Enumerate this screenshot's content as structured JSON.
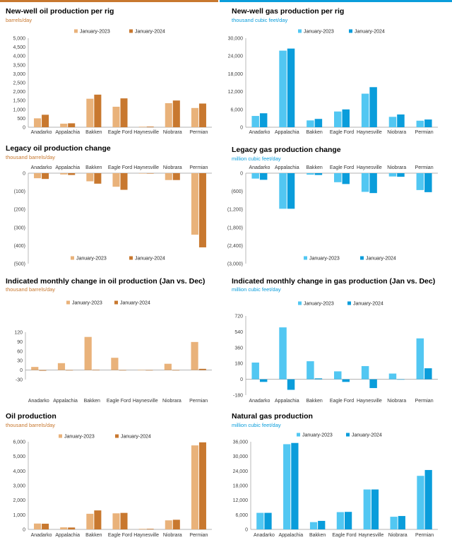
{
  "colors": {
    "oil_2023": "#E9B27A",
    "oil_2024": "#C8782F",
    "gas_2023": "#52C7F2",
    "gas_2024": "#0A9DDB",
    "oil_accent": "#C8782F",
    "gas_accent": "#0A9DDB",
    "axis": "#9a9a9a",
    "grid": "#e6e6e6"
  },
  "chart_data": [
    {
      "id": "oil-newwell",
      "type": "bar",
      "title": "New-well oil production per rig",
      "subtitle": "barrels/day",
      "categories": [
        "Anadarko",
        "Appalachia",
        "Bakken",
        "Eagle Ford",
        "Haynesville",
        "Niobrara",
        "Permian"
      ],
      "series": [
        {
          "name": "January-2023",
          "values": [
            500,
            200,
            1600,
            1150,
            30,
            1350,
            1080
          ]
        },
        {
          "name": "January-2024",
          "values": [
            700,
            220,
            1830,
            1620,
            35,
            1500,
            1330
          ]
        }
      ],
      "yticks": [
        "0",
        "500",
        "1,000",
        "1,500",
        "2,000",
        "2,500",
        "3,000",
        "3,500",
        "4,000",
        "4,500",
        "5,000"
      ],
      "ylim": [
        0,
        5000
      ],
      "legend": "top",
      "category_axis": "bottom"
    },
    {
      "id": "gas-newwell",
      "type": "bar",
      "title": "New-well gas production per rig",
      "subtitle": "thousand cubic feet/day",
      "categories": [
        "Anadarko",
        "Appalachia",
        "Bakken",
        "Eagle Ford",
        "Haynesville",
        "Niobrara",
        "Permian"
      ],
      "series": [
        {
          "name": "January-2023",
          "values": [
            3800,
            25800,
            2300,
            5300,
            11300,
            3500,
            2200
          ]
        },
        {
          "name": "January-2024",
          "values": [
            4700,
            26500,
            2800,
            6000,
            13500,
            4300,
            2600
          ]
        }
      ],
      "yticks": [
        "0",
        "6,000",
        "12,000",
        "18,000",
        "24,000",
        "30,000"
      ],
      "ylim": [
        0,
        30000
      ],
      "legend": "top",
      "category_axis": "bottom"
    },
    {
      "id": "oil-legacy",
      "type": "bar",
      "title": "Legacy oil production change",
      "subtitle": "thousand barrels/day",
      "categories": [
        "Anadarko",
        "Appalachia",
        "Bakken",
        "Eagle Ford",
        "Haynesville",
        "Niobrara",
        "Permian"
      ],
      "series": [
        {
          "name": "January-2023",
          "values": [
            -28,
            -7,
            -45,
            -75,
            -2,
            -38,
            -340
          ]
        },
        {
          "name": "January-2024",
          "values": [
            -32,
            -10,
            -58,
            -92,
            -2,
            -38,
            -410
          ]
        }
      ],
      "yticks": [
        "(500)",
        "(400)",
        "(300)",
        "(200)",
        "(100)",
        "0"
      ],
      "ylim": [
        -500,
        0
      ],
      "legend": "bottom",
      "category_axis": "top"
    },
    {
      "id": "gas-legacy",
      "type": "bar",
      "title": "Legacy gas production change",
      "subtitle": "million cubic feet/day",
      "categories": [
        "Anadarko",
        "Appalachia",
        "Bakken",
        "Eagle Ford",
        "Haynesville",
        "Niobrara",
        "Permian"
      ],
      "series": [
        {
          "name": "January-2023",
          "values": [
            -180,
            -1180,
            -50,
            -300,
            -620,
            -110,
            -560
          ]
        },
        {
          "name": "January-2024",
          "values": [
            -220,
            -1180,
            -60,
            -360,
            -660,
            -120,
            -630
          ]
        }
      ],
      "yticks": [
        "(3,000)",
        "(2,400)",
        "(1,800)",
        "(1,200)",
        "(600)",
        "0"
      ],
      "ylim": [
        -3000,
        0
      ],
      "legend": "bottom",
      "category_axis": "top"
    },
    {
      "id": "oil-monthly",
      "type": "bar",
      "title": "Indicated monthly change in oil production (Jan vs. Dec)",
      "subtitle": "thousand barrels/day",
      "categories": [
        "Anadarko",
        "Appalachia",
        "Bakken",
        "Eagle Ford",
        "Haynesville",
        "Niobrara",
        "Permian"
      ],
      "series": [
        {
          "name": "January-2023",
          "values": [
            10,
            22,
            105,
            39,
            1,
            20,
            89
          ]
        },
        {
          "name": "January-2024",
          "values": [
            -2,
            -1,
            1,
            -1,
            0,
            -1,
            4
          ]
        }
      ],
      "yticks": [
        "-30",
        "0",
        "30",
        "60",
        "90",
        "120"
      ],
      "ylim": [
        -30,
        120
      ],
      "legend": "top",
      "category_axis": "bottom-outside"
    },
    {
      "id": "gas-monthly",
      "type": "bar",
      "title": "Indicated monthly change in gas production (Jan vs. Dec)",
      "subtitle": "million cubic feet/day",
      "categories": [
        "Anadarko",
        "Appalachia",
        "Bakken",
        "Eagle Ford",
        "Haynesville",
        "Niobrara",
        "Permian"
      ],
      "series": [
        {
          "name": "January-2023",
          "values": [
            190,
            590,
            205,
            90,
            150,
            65,
            465
          ]
        },
        {
          "name": "January-2024",
          "values": [
            -30,
            -120,
            10,
            -30,
            -100,
            0,
            125
          ]
        }
      ],
      "yticks": [
        "-180",
        "0",
        "180",
        "360",
        "540",
        "720"
      ],
      "ylim": [
        -180,
        720
      ],
      "legend": "top",
      "category_axis": "bottom-outside"
    },
    {
      "id": "oil-production",
      "type": "bar",
      "title": "Oil production",
      "subtitle": "thousand barrels/day",
      "categories": [
        "Anadarko",
        "Appalachia",
        "Bakken",
        "Eagle Ford",
        "Haynesville",
        "Niobrara",
        "Permian"
      ],
      "series": [
        {
          "name": "January-2023",
          "values": [
            400,
            140,
            1070,
            1100,
            40,
            620,
            5750
          ]
        },
        {
          "name": "January-2024",
          "values": [
            390,
            130,
            1300,
            1130,
            40,
            660,
            5960
          ]
        }
      ],
      "yticks": [
        "0",
        "1,000",
        "2,000",
        "3,000",
        "4,000",
        "5,000",
        "6,000"
      ],
      "ylim": [
        0,
        6000
      ],
      "legend": "top",
      "category_axis": "bottom"
    },
    {
      "id": "gas-production",
      "type": "bar",
      "title": "Natural gas production",
      "subtitle": "million cubic feet/day",
      "categories": [
        "Anadarko",
        "Appalachia",
        "Bakken",
        "Eagle Ford",
        "Haynesville",
        "Niobrara",
        "Permian"
      ],
      "series": [
        {
          "name": "January-2023",
          "values": [
            6800,
            35000,
            3000,
            7100,
            16400,
            5200,
            22000
          ]
        },
        {
          "name": "January-2024",
          "values": [
            6800,
            35500,
            3500,
            7200,
            16400,
            5500,
            24400
          ]
        }
      ],
      "yticks": [
        "0",
        "6,000",
        "12,000",
        "18,000",
        "24,000",
        "30,000",
        "36,000"
      ],
      "ylim": [
        0,
        36000
      ],
      "legend": "top",
      "category_axis": "bottom"
    }
  ]
}
